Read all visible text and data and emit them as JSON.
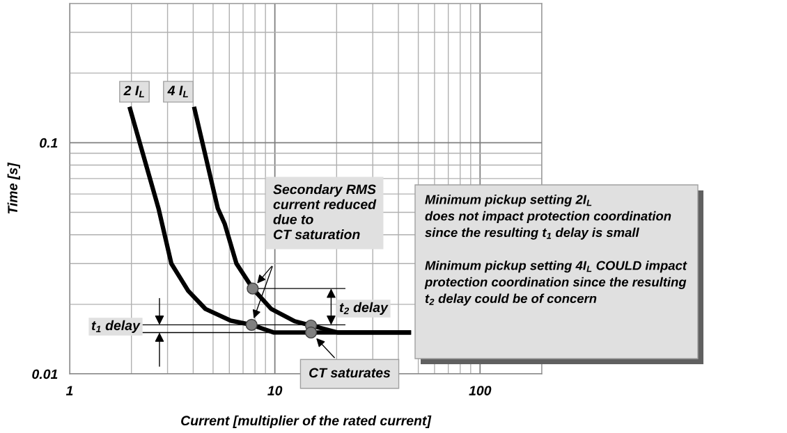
{
  "chart_data": {
    "type": "line",
    "xlabel": "Current [multiplier of the rated current]",
    "ylabel": "Time [s]",
    "log": "xy",
    "xlim": [
      1,
      200
    ],
    "ylim": [
      0.01,
      0.4
    ],
    "xticks": [
      1,
      10,
      100
    ],
    "yticks": [
      0.01,
      0.1
    ],
    "grid": true,
    "series": [
      {
        "name": "2 I$_{L}$",
        "color": "#000000",
        "x": [
          1.97,
          2.71,
          3.13,
          3.78,
          4.59,
          6.1,
          7.7,
          9.9,
          45
        ],
        "values": [
          0.14,
          0.052,
          0.03,
          0.0229,
          0.0191,
          0.017,
          0.0163,
          0.0151,
          0.0151
        ]
      },
      {
        "name": "4 I$_{L}$",
        "color": "#000000",
        "x": [
          4.06,
          5.27,
          5.7,
          6.5,
          7.8,
          9.6,
          12.5,
          15.0,
          20.3,
          45
        ],
        "values": [
          0.14,
          0.052,
          0.0445,
          0.03,
          0.0234,
          0.0191,
          0.0169,
          0.0162,
          0.0151,
          0.0151
        ]
      },
      {
        "type": "scatter",
        "color": "#808080",
        "x": [
          7.7,
          7.8,
          15.0,
          15.0
        ],
        "values": [
          0.0163,
          0.0234,
          0.0162,
          0.0151
        ]
      }
    ],
    "ref_lines": [
      {
        "axis": "y",
        "value": 0.0163,
        "label": "t$_{1}$ delay"
      },
      {
        "axis": "y",
        "value": 0.0151
      },
      {
        "axis": "y",
        "value": 0.0234,
        "label": "t$_{2}$ delay"
      }
    ],
    "annotations": [
      "Secondary RMS\ncurrent reduced\ndue to\nCT saturation",
      {
        "text": "CT saturates",
        "x": 15.0,
        "y": 0.0151
      },
      "Minimum pickup setting 2I$_{L}$\ndoes not impact protection coordination\nsince the resulting t$_{1}$ delay is small\n\nMinimum pickup setting 4I$_{L}$ COULD impact\nprotection coordination since the resulting\nt$_{2}$ delay could be of concern"
    ]
  }
}
